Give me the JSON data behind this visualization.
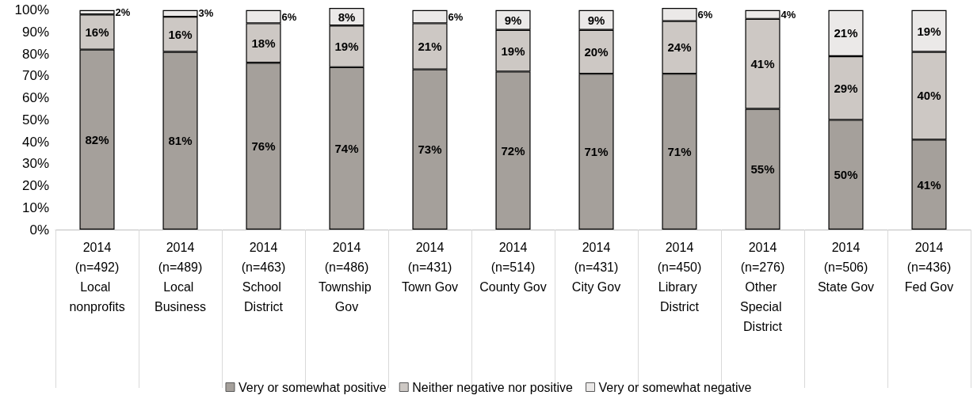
{
  "chart_data": {
    "type": "bar",
    "stacked": true,
    "categories": [
      "2014\n(n=492)\nLocal nonprofits",
      "2014\n(n=489)\nLocal Business",
      "2014\n(n=463)\nSchool District",
      "2014\n(n=486)\nTownship Gov",
      "2014\n(n=431)\nTown Gov",
      "2014\n(n=514)\nCounty Gov",
      "2014\n(n=431)\nCity Gov",
      "2014\n(n=450)\nLibrary District",
      "2014\n(n=276)\nOther Special District",
      "2014\n(n=506)\nState Gov",
      "2014\n(n=436)\nFed Gov"
    ],
    "series": [
      {
        "name": "Very or somewhat positive",
        "color": "#a5a09b",
        "values": [
          82,
          81,
          76,
          74,
          73,
          72,
          71,
          71,
          55,
          50,
          41
        ],
        "value_labels": [
          "82%",
          "81%",
          "76%",
          "74%",
          "73%",
          "72%",
          "71%",
          "71%",
          "55%",
          "50%",
          "41%"
        ]
      },
      {
        "name": "Neither negative nor positive",
        "color": "#cdc8c4",
        "values": [
          16,
          16,
          18,
          19,
          21,
          19,
          20,
          24,
          41,
          29,
          40
        ],
        "value_labels": [
          "16%",
          "16%",
          "18%",
          "19%",
          "21%",
          "19%",
          "20%",
          "24%",
          "41%",
          "29%",
          "40%"
        ]
      },
      {
        "name": "Very or somewhat negative",
        "color": "#ebe9e8",
        "values": [
          2,
          3,
          6,
          8,
          6,
          9,
          9,
          6,
          4,
          21,
          19
        ],
        "value_labels": [
          "2%",
          "3%",
          "6%",
          "8%",
          "6%",
          "9%",
          "9%",
          "6%",
          "4%",
          "21%",
          "19%"
        ]
      }
    ],
    "ylim": [
      0,
      101
    ],
    "yticks": [
      {
        "value": 0,
        "label": "0%"
      },
      {
        "value": 10,
        "label": "10%"
      },
      {
        "value": 20,
        "label": "20%"
      },
      {
        "value": 30,
        "label": "30%"
      },
      {
        "value": 40,
        "label": "40%"
      },
      {
        "value": 50,
        "label": "50%"
      },
      {
        "value": 60,
        "label": "60%"
      },
      {
        "value": 70,
        "label": "70%"
      },
      {
        "value": 80,
        "label": "80%"
      },
      {
        "value": 90,
        "label": "90%"
      },
      {
        "value": 100,
        "label": "100%"
      }
    ],
    "grid": false,
    "legend": "bottom"
  }
}
